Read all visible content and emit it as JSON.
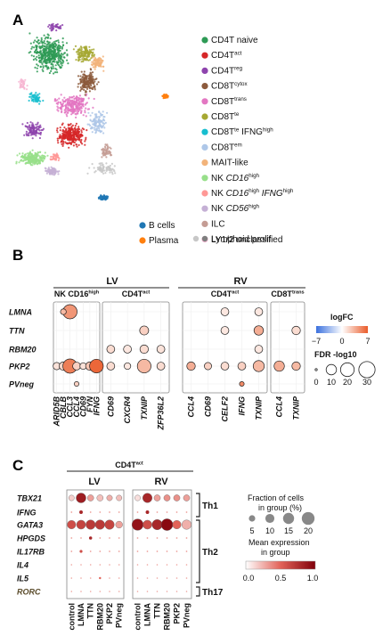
{
  "panels": {
    "a": "A",
    "b": "B",
    "c": "C"
  },
  "chart_data": [
    {
      "type": "scatter",
      "panel": "A",
      "legend_items": [
        {
          "label": "CD4T naive",
          "color": "#2e9a55"
        },
        {
          "label": "CD4T",
          "sup": "act",
          "color": "#d62728"
        },
        {
          "label": "CD4T",
          "sup": "reg",
          "color": "#8e44ad"
        },
        {
          "label": "CD8T",
          "sup": "cytox",
          "color": "#8c5a3c"
        },
        {
          "label": "CD8T",
          "sup": "trans",
          "color": "#e377c2"
        },
        {
          "label": "CD8T",
          "sup": "te",
          "color": "#a6a833"
        },
        {
          "label": "CD8T",
          "sup": "te",
          "label2": " IFNG",
          "sup2": "high",
          "color": "#17becf"
        },
        {
          "label": "CD8T",
          "sup": "em",
          "color": "#aec7e8"
        },
        {
          "label": "MAIT-like",
          "color": "#f2b37a"
        },
        {
          "label": "NK ",
          "italic": "CD16",
          "sup": "high",
          "color": "#98df8a"
        },
        {
          "label": "NK ",
          "italic": "CD16",
          "sup": "high",
          "italic2": " IFNG",
          "sup2": "high",
          "color": "#ff9896"
        },
        {
          "label": "NK ",
          "italic": "CD56",
          "sup": "high",
          "color": "#c5b0d5"
        },
        {
          "label": "ILC",
          "color": "#c49c94"
        },
        {
          "label": "Lymphoid prolif",
          "color": "#f7b6d2"
        }
      ],
      "bottom_legend": [
        {
          "label": "B cells",
          "color": "#1f77b4"
        },
        {
          "label": "Plasma",
          "color": "#ff7f0e"
        },
        {
          "label": "LY1/2 unclassified",
          "colors": [
            "#c7c7c7",
            "#7f7f7f"
          ]
        }
      ]
    },
    {
      "type": "dotplot",
      "panel": "B",
      "group_labels": [
        "LV",
        "RV"
      ],
      "subpanels": [
        {
          "title": "NK CD16",
          "sup": "high",
          "genes": [
            "ARID5B",
            "CBLB",
            "CCL3",
            "CCL4",
            "CD69",
            "FYN",
            "IFNG"
          ]
        },
        {
          "title": "CD4T",
          "sup": "act",
          "genes": [
            "CD69",
            "CXCR4",
            "TXNIP",
            "ZFP36L2"
          ]
        },
        {
          "title": "CD4T",
          "sup": "act",
          "genes": [
            "CCL4",
            "CD69",
            "CELF2",
            "IFNG",
            "TXNIP"
          ]
        },
        {
          "title": "CD8T",
          "sup": "trans",
          "genes": [
            "CCL4",
            "TXNIP"
          ]
        }
      ],
      "rows": [
        "LMNA",
        "TTN",
        "RBM20",
        "PKP2",
        "PVneg"
      ],
      "points": [
        {
          "s": 0,
          "g": 0,
          "r": 3,
          "fc": 1.2,
          "fdr": 4
        },
        {
          "s": 0,
          "g": 1,
          "r": 3,
          "fc": 1.8,
          "fdr": 6
        },
        {
          "s": 0,
          "g": 2,
          "r": 3,
          "fc": 5.5,
          "fdr": 22
        },
        {
          "s": 0,
          "g": 3,
          "r": 3,
          "fc": 2.0,
          "fdr": 5
        },
        {
          "s": 0,
          "g": 4,
          "r": 3,
          "fc": 1.2,
          "fdr": 3
        },
        {
          "s": 0,
          "g": 5,
          "r": 3,
          "fc": 2.5,
          "fdr": 6
        },
        {
          "s": 0,
          "g": 6,
          "r": 3,
          "fc": 6.5,
          "fdr": 20
        },
        {
          "s": 0,
          "g": 2,
          "r": 0,
          "fc": 4.5,
          "fdr": 22
        },
        {
          "s": 0,
          "g": 1,
          "r": 0,
          "fc": 3.0,
          "fdr": 2
        },
        {
          "s": 0,
          "g": 3,
          "r": 4,
          "fc": 2.0,
          "fdr": 1
        },
        {
          "s": 1,
          "g": 0,
          "r": 2,
          "fc": 1.5,
          "fdr": 5
        },
        {
          "s": 1,
          "g": 1,
          "r": 2,
          "fc": 1.0,
          "fdr": 5
        },
        {
          "s": 1,
          "g": 2,
          "r": 2,
          "fc": 1.5,
          "fdr": 6
        },
        {
          "s": 1,
          "g": 3,
          "r": 2,
          "fc": 1.2,
          "fdr": 5
        },
        {
          "s": 1,
          "g": 2,
          "r": 1,
          "fc": 2.0,
          "fdr": 7
        },
        {
          "s": 1,
          "g": 0,
          "r": 3,
          "fc": 1.5,
          "fdr": 5
        },
        {
          "s": 1,
          "g": 1,
          "r": 3,
          "fc": 1.0,
          "fdr": 3
        },
        {
          "s": 1,
          "g": 2,
          "r": 3,
          "fc": 3.0,
          "fdr": 20
        },
        {
          "s": 1,
          "g": 3,
          "r": 3,
          "fc": 1.5,
          "fdr": 5
        },
        {
          "s": 2,
          "g": 2,
          "r": 0,
          "fc": 1.0,
          "fdr": 5
        },
        {
          "s": 2,
          "g": 4,
          "r": 0,
          "fc": 1.0,
          "fdr": 5
        },
        {
          "s": 2,
          "g": 2,
          "r": 1,
          "fc": 1.0,
          "fdr": 5
        },
        {
          "s": 2,
          "g": 4,
          "r": 1,
          "fc": 3.5,
          "fdr": 8
        },
        {
          "s": 2,
          "g": 4,
          "r": 2,
          "fc": 1.0,
          "fdr": 5
        },
        {
          "s": 2,
          "g": 0,
          "r": 3,
          "fc": 3.5,
          "fdr": 6
        },
        {
          "s": 2,
          "g": 1,
          "r": 3,
          "fc": 2.0,
          "fdr": 4
        },
        {
          "s": 2,
          "g": 2,
          "r": 3,
          "fc": 1.5,
          "fdr": 5
        },
        {
          "s": 2,
          "g": 3,
          "r": 3,
          "fc": 2.0,
          "fdr": 5
        },
        {
          "s": 2,
          "g": 4,
          "r": 3,
          "fc": 3.0,
          "fdr": 12
        },
        {
          "s": 2,
          "g": 3,
          "r": 4,
          "fc": 5.0,
          "fdr": 1
        },
        {
          "s": 3,
          "g": 1,
          "r": 1,
          "fc": 1.5,
          "fdr": 6
        },
        {
          "s": 3,
          "g": 0,
          "r": 3,
          "fc": 3.5,
          "fdr": 10
        },
        {
          "s": 3,
          "g": 1,
          "r": 3,
          "fc": 3.0,
          "fdr": 6
        }
      ],
      "logfc_legend": {
        "title": "logFC",
        "ticks": [
          "−7",
          "0",
          "7"
        ],
        "range": [
          -7,
          7
        ]
      },
      "fdr_legend": {
        "title": "FDR -log10",
        "ticks": [
          "0",
          "10",
          "20",
          "30"
        ],
        "values": [
          0,
          10,
          20,
          30
        ]
      }
    },
    {
      "type": "dotplot",
      "panel": "C",
      "header": {
        "title": "CD4T",
        "sup": "act"
      },
      "group_labels": [
        "LV",
        "RV"
      ],
      "conditions": [
        "control",
        "LMNA",
        "TTN",
        "RBM20",
        "PKP2",
        "PVneg"
      ],
      "rows": [
        "TBX21",
        "IFNG",
        "GATA3",
        "HPGDS",
        "IL17RB",
        "IL4",
        "IL5",
        "RORC"
      ],
      "row_groups": [
        {
          "label": "Th1",
          "rows": [
            0,
            1
          ]
        },
        {
          "label": "Th2",
          "rows": [
            2,
            3,
            4,
            5,
            6
          ]
        },
        {
          "label": "Th17",
          "rows": [
            7
          ]
        }
      ],
      "lv": [
        [
          {
            "f": 4,
            "e": 0.15
          },
          {
            "f": 12,
            "e": 0.85
          },
          {
            "f": 5,
            "e": 0.3
          },
          {
            "f": 5,
            "e": 0.2
          },
          {
            "f": 4,
            "e": 0.25
          },
          {
            "f": 4,
            "e": 0.2
          }
        ],
        [
          {
            "f": 0.3,
            "e": 0.3
          },
          {
            "f": 1.5,
            "e": 0.8
          },
          {
            "f": 0.3,
            "e": 0.3
          },
          {
            "f": 0.3,
            "e": 0.3
          },
          {
            "f": 0.3,
            "e": 0.3
          },
          {
            "f": 0.3,
            "e": 0.3
          }
        ],
        [
          {
            "f": 9,
            "e": 0.6
          },
          {
            "f": 10,
            "e": 0.65
          },
          {
            "f": 11,
            "e": 0.7
          },
          {
            "f": 11,
            "e": 0.7
          },
          {
            "f": 11,
            "e": 0.65
          },
          {
            "f": 6,
            "e": 0.3
          }
        ],
        [
          {
            "f": 0.3,
            "e": 0.3
          },
          {
            "f": 0.3,
            "e": 0.3
          },
          {
            "f": 1.2,
            "e": 0.8
          },
          {
            "f": 0.3,
            "e": 0.3
          },
          {
            "f": 0.3,
            "e": 0.3
          },
          {
            "f": 0.3,
            "e": 0.3
          }
        ],
        [
          {
            "f": 0.3,
            "e": 0.3
          },
          {
            "f": 1.0,
            "e": 0.6
          },
          {
            "f": 0.3,
            "e": 0.3
          },
          {
            "f": 0.3,
            "e": 0.3
          },
          {
            "f": 0.3,
            "e": 0.3
          },
          {
            "f": 0.3,
            "e": 0.3
          }
        ],
        [
          {
            "f": 0.2,
            "e": 0.3
          },
          {
            "f": 0.2,
            "e": 0.3
          },
          {
            "f": 0.2,
            "e": 0.3
          },
          {
            "f": 0.2,
            "e": 0.3
          },
          {
            "f": 0.2,
            "e": 0.3
          },
          {
            "f": 0.2,
            "e": 0.3
          }
        ],
        [
          {
            "f": 0.2,
            "e": 0.3
          },
          {
            "f": 0.2,
            "e": 0.3
          },
          {
            "f": 0.2,
            "e": 0.3
          },
          {
            "f": 0.6,
            "e": 0.5
          },
          {
            "f": 0.2,
            "e": 0.3
          },
          {
            "f": 0.2,
            "e": 0.3
          }
        ],
        [
          {
            "f": 0.2,
            "e": 0.3
          },
          {
            "f": 0.2,
            "e": 0.3
          },
          {
            "f": 0.2,
            "e": 0.3
          },
          {
            "f": 0.2,
            "e": 0.3
          },
          {
            "f": 0.2,
            "e": 0.3
          },
          {
            "f": 0.2,
            "e": 0.3
          }
        ]
      ],
      "rv": [
        [
          {
            "f": 4,
            "e": 0.1
          },
          {
            "f": 11,
            "e": 0.8
          },
          {
            "f": 5,
            "e": 0.3
          },
          {
            "f": 5,
            "e": 0.35
          },
          {
            "f": 5,
            "e": 0.35
          },
          {
            "f": 5,
            "e": 0.3
          }
        ],
        [
          {
            "f": 0.3,
            "e": 0.3
          },
          {
            "f": 1.5,
            "e": 0.8
          },
          {
            "f": 0.3,
            "e": 0.3
          },
          {
            "f": 0.3,
            "e": 0.3
          },
          {
            "f": 0.3,
            "e": 0.3
          },
          {
            "f": 0.3,
            "e": 0.3
          }
        ],
        [
          {
            "f": 16,
            "e": 0.9
          },
          {
            "f": 10,
            "e": 0.6
          },
          {
            "f": 13,
            "e": 0.8
          },
          {
            "f": 17,
            "e": 0.95
          },
          {
            "f": 9,
            "e": 0.5
          },
          {
            "f": 11,
            "e": 0.25
          }
        ],
        [
          {
            "f": 0.3,
            "e": 0.3
          },
          {
            "f": 0.3,
            "e": 0.3
          },
          {
            "f": 0.3,
            "e": 0.3
          },
          {
            "f": 0.3,
            "e": 0.3
          },
          {
            "f": 0.3,
            "e": 0.3
          },
          {
            "f": 0.3,
            "e": 0.3
          }
        ],
        [
          {
            "f": 0.3,
            "e": 0.3
          },
          {
            "f": 0.3,
            "e": 0.3
          },
          {
            "f": 0.3,
            "e": 0.3
          },
          {
            "f": 0.3,
            "e": 0.3
          },
          {
            "f": 0.3,
            "e": 0.3
          },
          {
            "f": 0.3,
            "e": 0.3
          }
        ],
        [
          {
            "f": 0.2,
            "e": 0.3
          },
          {
            "f": 0.2,
            "e": 0.3
          },
          {
            "f": 0.2,
            "e": 0.3
          },
          {
            "f": 0.2,
            "e": 0.3
          },
          {
            "f": 0.2,
            "e": 0.3
          },
          {
            "f": 0.2,
            "e": 0.3
          }
        ],
        [
          {
            "f": 0.2,
            "e": 0.3
          },
          {
            "f": 0.2,
            "e": 0.3
          },
          {
            "f": 0.2,
            "e": 0.3
          },
          {
            "f": 0.2,
            "e": 0.3
          },
          {
            "f": 0.2,
            "e": 0.3
          },
          {
            "f": 0.2,
            "e": 0.3
          }
        ],
        [
          {
            "f": 0.2,
            "e": 0.3
          },
          {
            "f": 0.2,
            "e": 0.3
          },
          {
            "f": 0.2,
            "e": 0.3
          },
          {
            "f": 0.2,
            "e": 0.3
          },
          {
            "f": 0.2,
            "e": 0.3
          },
          {
            "f": 0.2,
            "e": 0.3
          }
        ]
      ],
      "fraction_legend": {
        "title": "Fraction of cells\nin group (%)",
        "ticks": [
          "5",
          "10",
          "15",
          "20"
        ],
        "values": [
          5,
          10,
          15,
          20
        ]
      },
      "expression_legend": {
        "title": "Mean expression\nin group",
        "ticks": [
          "0.0",
          "0.5",
          "1.0"
        ],
        "range": [
          0,
          1
        ]
      }
    }
  ]
}
